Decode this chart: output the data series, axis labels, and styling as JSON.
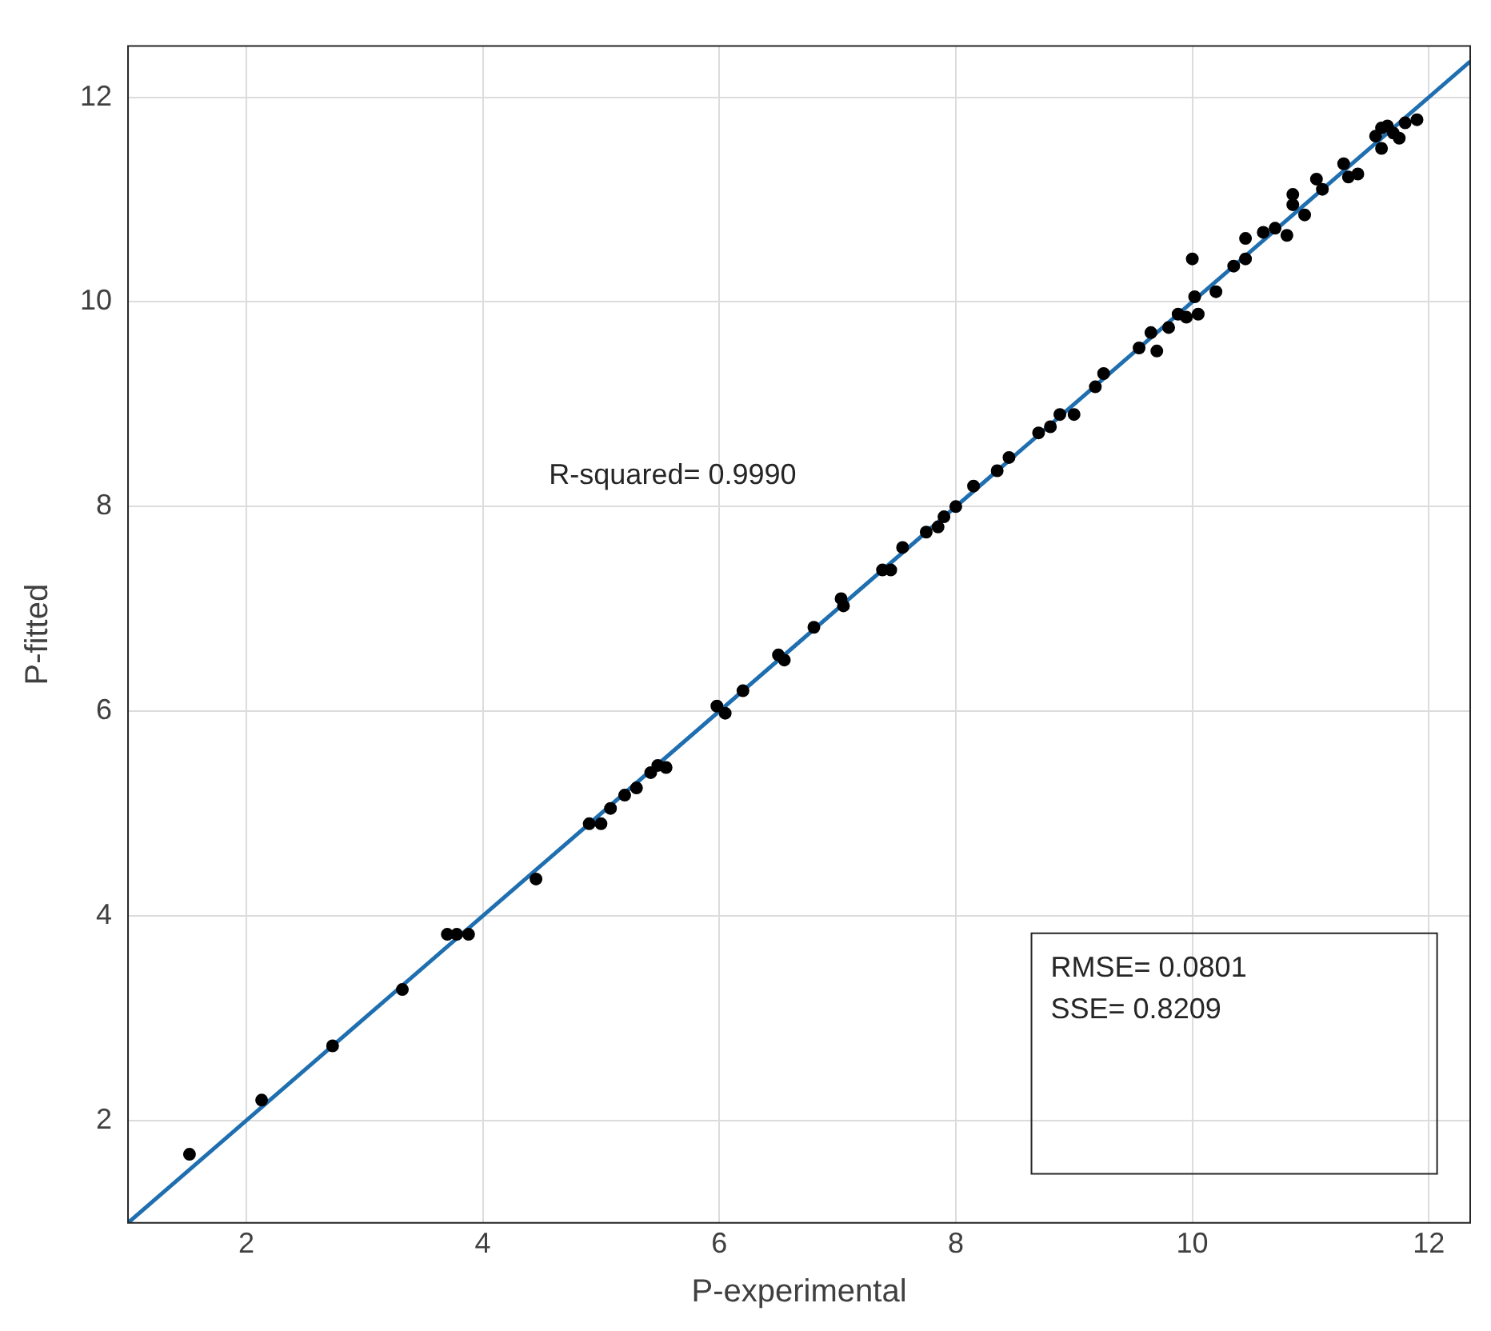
{
  "chart_data": {
    "type": "scatter",
    "xlabel": "P-experimental",
    "ylabel": "P-fitted",
    "xlim": [
      1,
      12.35
    ],
    "ylim": [
      1,
      12.5
    ],
    "xticks": [
      2,
      4,
      6,
      8,
      10,
      12
    ],
    "yticks": [
      2,
      4,
      6,
      8,
      10,
      12
    ],
    "grid": true,
    "marker": "circle",
    "annotations": [
      "R-squared= 0.9990",
      "RMSE= 0.0801",
      "SSE= 0.8209"
    ],
    "series": [
      {
        "color": "#000000",
        "x": [
          1.52,
          2.13,
          2.73,
          3.32,
          3.7,
          3.78,
          3.88,
          4.45,
          4.9,
          5.0,
          5.08,
          5.2,
          5.3,
          5.42,
          5.48,
          5.55,
          5.98,
          6.05,
          6.2,
          6.5,
          6.55,
          6.8,
          7.03,
          7.05,
          7.38,
          7.45,
          7.55,
          7.75,
          7.85,
          7.9,
          8.0,
          8.15,
          8.35,
          8.45,
          8.7,
          8.8,
          8.88,
          9.0,
          9.18,
          9.25,
          9.55,
          9.65,
          9.7,
          9.8,
          9.88,
          9.95,
          10.0,
          10.02,
          10.05,
          10.2,
          10.35,
          10.45,
          10.45,
          10.6,
          10.7,
          10.8,
          10.85,
          10.85,
          10.95,
          11.05,
          11.1,
          11.28,
          11.32,
          11.4,
          11.55,
          11.6,
          11.65,
          11.7,
          11.8,
          11.9,
          11.75,
          11.6
        ],
        "values": [
          1.67,
          2.2,
          2.73,
          3.28,
          3.82,
          3.82,
          3.82,
          4.36,
          4.9,
          4.9,
          5.05,
          5.18,
          5.25,
          5.4,
          5.47,
          5.45,
          6.05,
          5.98,
          6.2,
          6.55,
          6.5,
          6.82,
          7.1,
          7.03,
          7.38,
          7.38,
          7.6,
          7.75,
          7.8,
          7.9,
          8.0,
          8.2,
          8.35,
          8.48,
          8.72,
          8.78,
          8.9,
          8.9,
          9.17,
          9.3,
          9.55,
          9.7,
          9.52,
          9.75,
          9.88,
          9.85,
          10.42,
          10.05,
          9.88,
          10.1,
          10.35,
          10.42,
          10.62,
          10.68,
          10.72,
          10.65,
          10.95,
          11.05,
          10.85,
          11.2,
          11.1,
          11.35,
          11.22,
          11.25,
          11.62,
          11.5,
          11.72,
          11.65,
          11.75,
          11.78,
          11.6,
          11.7
        ]
      },
      {
        "type": "line",
        "marker": "none",
        "color": "#1f6fb0",
        "x": [
          1,
          12.35
        ],
        "values": [
          1,
          12.35
        ]
      }
    ]
  }
}
